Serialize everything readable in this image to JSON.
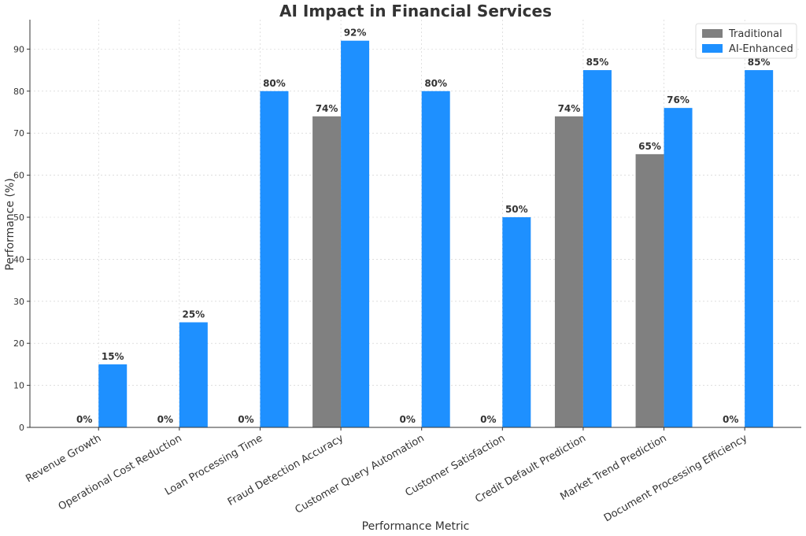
{
  "chart_data": {
    "type": "bar",
    "title": "AI Impact in Financial Services",
    "xlabel": "Performance Metric",
    "ylabel": "Performance (%)",
    "ylim": [
      0,
      97
    ],
    "yticks": [
      0,
      10,
      20,
      30,
      40,
      50,
      60,
      70,
      80,
      90
    ],
    "grid": true,
    "legend_position": "top-right",
    "categories": [
      "Revenue Growth",
      "Operational Cost Reduction",
      "Loan Processing Time",
      "Fraud Detection Accuracy",
      "Customer Query Automation",
      "Customer Satisfaction",
      "Credit Default Prediction",
      "Market Trend Prediction",
      "Document Processing Efficiency"
    ],
    "series": [
      {
        "name": "Traditional",
        "color": "#808080",
        "values": [
          0,
          0,
          0,
          74,
          0,
          0,
          74,
          65,
          0
        ]
      },
      {
        "name": "AI-Enhanced",
        "color": "#1e90ff",
        "values": [
          15,
          25,
          80,
          92,
          80,
          50,
          85,
          76,
          85
        ]
      }
    ]
  }
}
